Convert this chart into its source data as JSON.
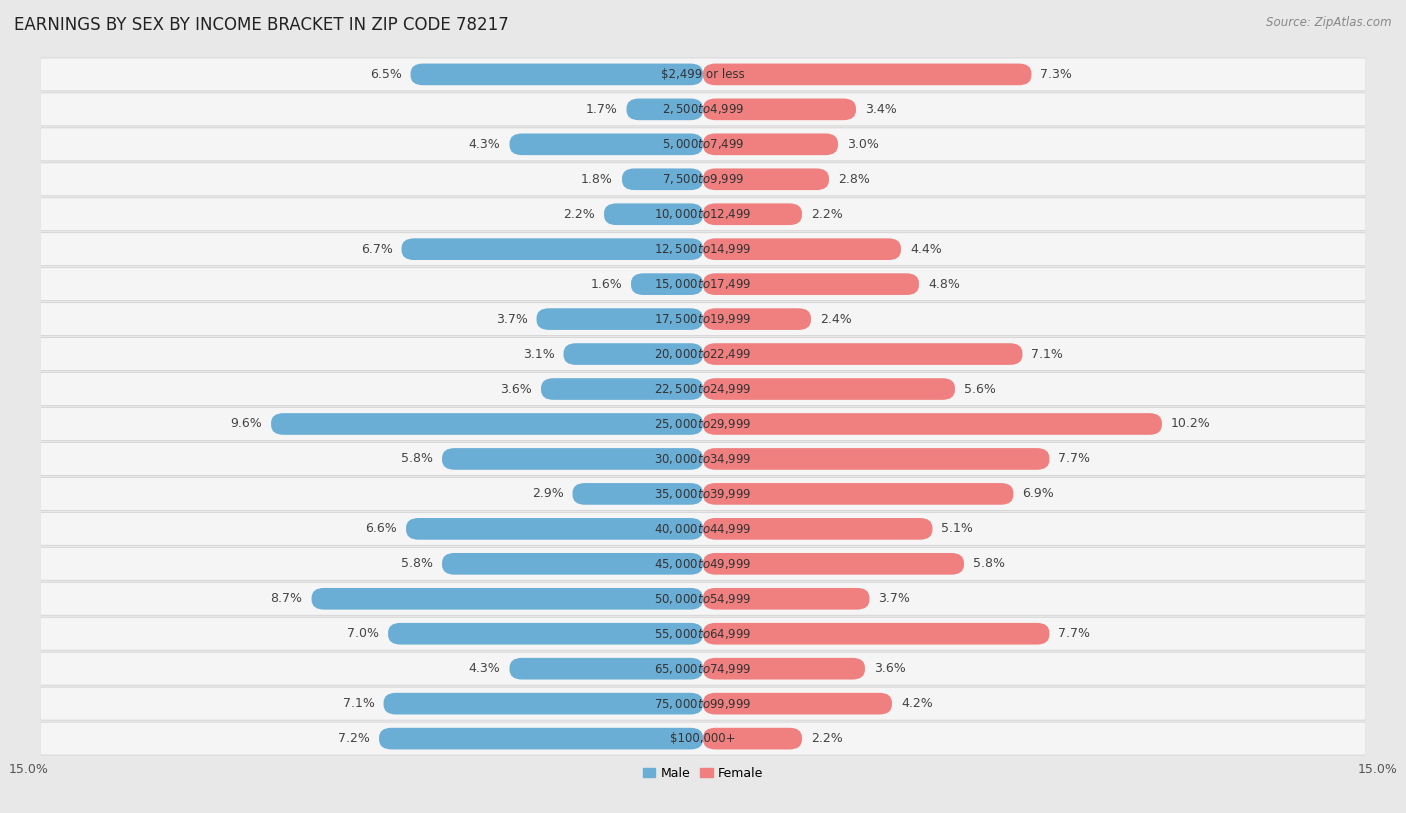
{
  "title": "EARNINGS BY SEX BY INCOME BRACKET IN ZIP CODE 78217",
  "source": "Source: ZipAtlas.com",
  "categories": [
    "$2,499 or less",
    "$2,500 to $4,999",
    "$5,000 to $7,499",
    "$7,500 to $9,999",
    "$10,000 to $12,499",
    "$12,500 to $14,999",
    "$15,000 to $17,499",
    "$17,500 to $19,999",
    "$20,000 to $22,499",
    "$22,500 to $24,999",
    "$25,000 to $29,999",
    "$30,000 to $34,999",
    "$35,000 to $39,999",
    "$40,000 to $44,999",
    "$45,000 to $49,999",
    "$50,000 to $54,999",
    "$55,000 to $64,999",
    "$65,000 to $74,999",
    "$75,000 to $99,999",
    "$100,000+"
  ],
  "male_values": [
    6.5,
    1.7,
    4.3,
    1.8,
    2.2,
    6.7,
    1.6,
    3.7,
    3.1,
    3.6,
    9.6,
    5.8,
    2.9,
    6.6,
    5.8,
    8.7,
    7.0,
    4.3,
    7.1,
    7.2
  ],
  "female_values": [
    7.3,
    3.4,
    3.0,
    2.8,
    2.2,
    4.4,
    4.8,
    2.4,
    7.1,
    5.6,
    10.2,
    7.7,
    6.9,
    5.1,
    5.8,
    3.7,
    7.7,
    3.6,
    4.2,
    2.2
  ],
  "male_color": "#6aaed6",
  "female_color": "#f08080",
  "axis_limit": 15.0,
  "bg_color": "#e8e8e8",
  "row_bg_color": "#f5f5f5",
  "row_border_color": "#d0d0d0",
  "title_fontsize": 12,
  "label_fontsize": 9,
  "source_fontsize": 8.5,
  "tick_fontsize": 9,
  "cat_fontsize": 8.5
}
